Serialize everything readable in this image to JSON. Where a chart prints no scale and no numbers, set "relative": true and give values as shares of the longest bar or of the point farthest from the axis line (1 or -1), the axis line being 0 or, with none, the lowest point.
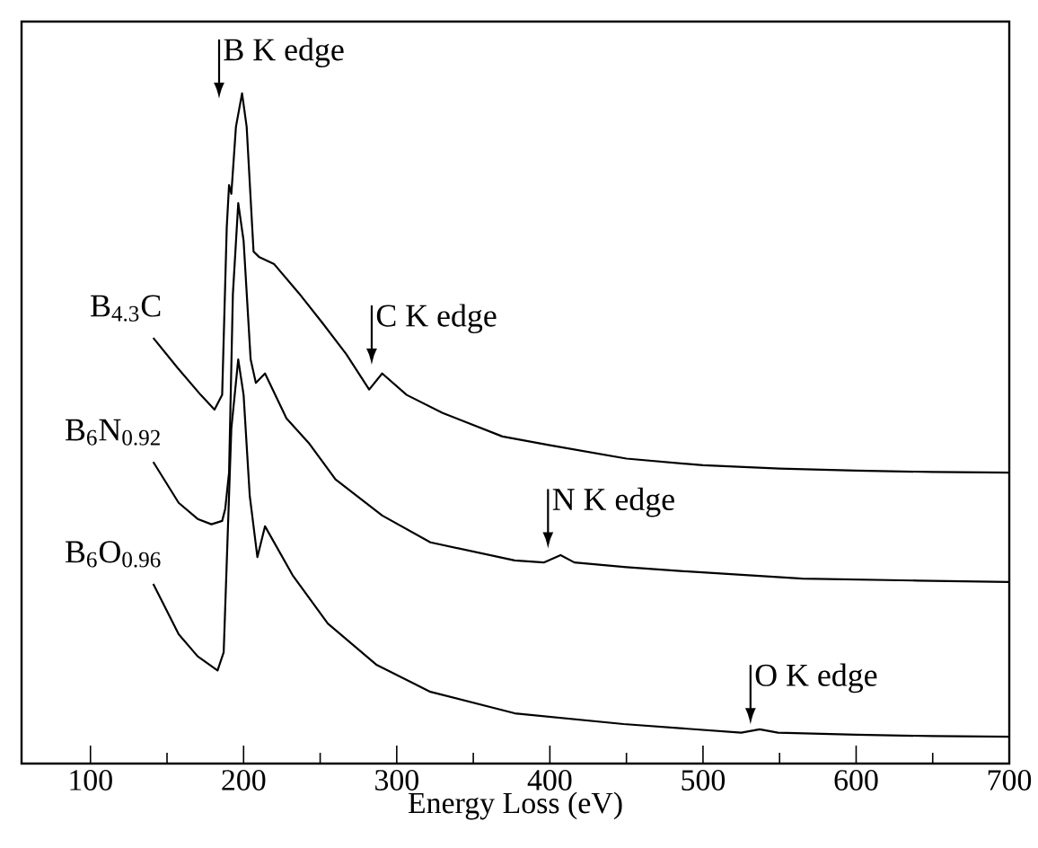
{
  "chart_data": {
    "type": "line",
    "relative": true,
    "xlabel": "Energy Loss (eV)",
    "xlim": [
      55,
      700
    ],
    "xticks": [
      100,
      200,
      300,
      400,
      500,
      600,
      700
    ],
    "legend": false,
    "grid": false,
    "marker": "none",
    "line_style": "solid",
    "series": [
      {
        "name": "B$_{4.3}$C",
        "color": "#000000",
        "x": [
          141,
          157,
          172,
          181,
          186,
          189,
          190.5,
          192,
          195,
          199,
          202,
          206.5,
          210,
          220,
          236,
          251.6,
          267,
          282,
          290.5,
          306.5,
          330,
          369,
          400,
          450,
          500,
          550,
          600,
          650,
          700
        ],
        "values": [
          0.635,
          0.59,
          0.55,
          0.528,
          0.55,
          0.8,
          0.863,
          0.85,
          0.95,
          1.0,
          0.95,
          0.764,
          0.756,
          0.745,
          0.702,
          0.657,
          0.611,
          0.558,
          0.582,
          0.55,
          0.523,
          0.488,
          0.475,
          0.455,
          0.445,
          0.44,
          0.437,
          0.435,
          0.434
        ]
      },
      {
        "name": "B$_{6}$N$_{0.92}$",
        "color": "#000000",
        "x": [
          141,
          157.6,
          170,
          179,
          186,
          188,
          190.5,
          193,
          196.5,
          200,
          204.6,
          208,
          214,
          228,
          243,
          260,
          290.5,
          322,
          377,
          396,
          407,
          416,
          450,
          487,
          565,
          640,
          700
        ],
        "values": [
          0.45,
          0.389,
          0.365,
          0.357,
          0.362,
          0.38,
          0.434,
          0.7,
          0.836,
          0.78,
          0.603,
          0.568,
          0.582,
          0.515,
          0.477,
          0.424,
          0.37,
          0.33,
          0.303,
          0.3,
          0.311,
          0.3,
          0.293,
          0.287,
          0.276,
          0.273,
          0.271
        ]
      },
      {
        "name": "B$_{6}$O$_{0.96}$",
        "color": "#000000",
        "x": [
          141,
          157.6,
          170,
          183,
          187,
          189,
          192,
          196.5,
          200,
          204,
          209,
          214,
          232,
          255,
          287,
          322,
          377,
          448,
          525,
          537,
          549,
          600,
          650,
          700
        ],
        "values": [
          0.268,
          0.193,
          0.16,
          0.139,
          0.166,
          0.3,
          0.5,
          0.603,
          0.55,
          0.4,
          0.308,
          0.354,
          0.281,
          0.209,
          0.147,
          0.107,
          0.075,
          0.059,
          0.046,
          0.051,
          0.046,
          0.043,
          0.041,
          0.04
        ]
      }
    ],
    "annotations": [
      "B K edge",
      "C K edge",
      "N K edge",
      "O K edge"
    ]
  }
}
